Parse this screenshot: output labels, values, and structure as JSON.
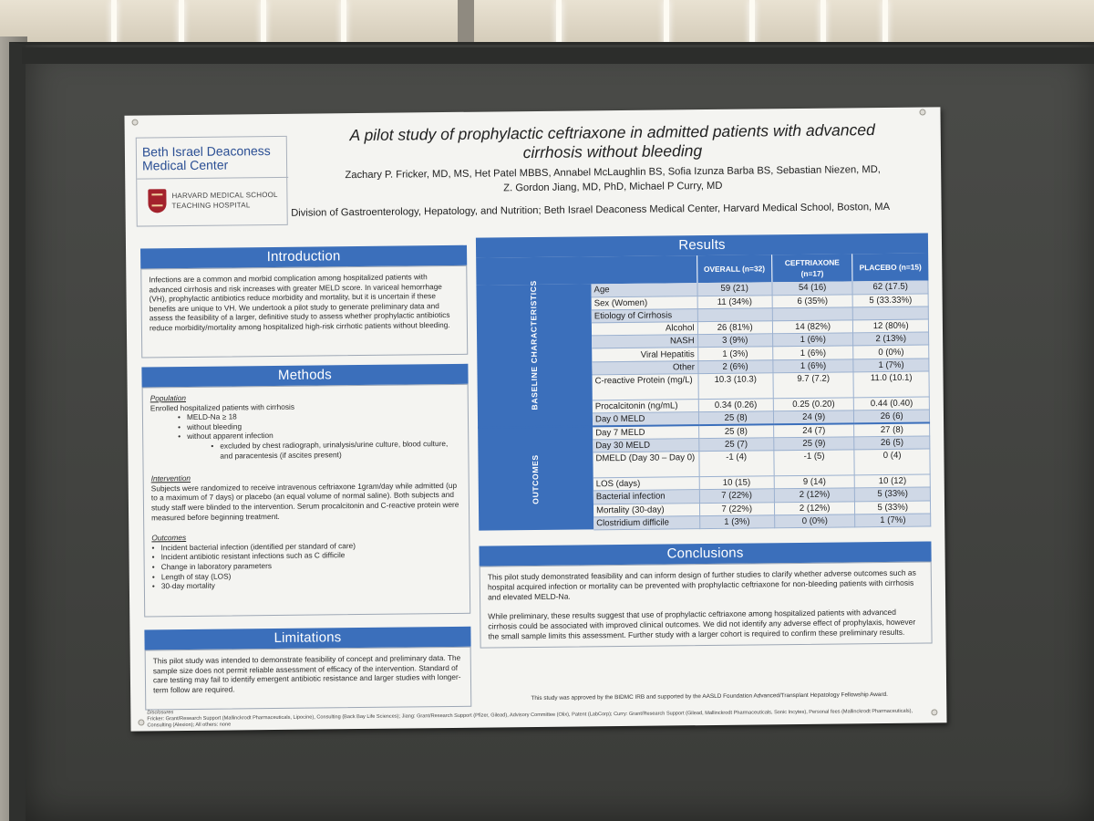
{
  "logo": {
    "line1": "Beth Israel Deaconess",
    "line2": "Medical Center",
    "hms_line1": "HARVARD MEDICAL SCHOOL",
    "hms_line2": "TEACHING HOSPITAL"
  },
  "title_line1": "A pilot study of prophylactic ceftriaxone in admitted patients with advanced",
  "title_line2": "cirrhosis without bleeding",
  "authors_line1": "Zachary P. Fricker, MD, MS, Het Patel MBBS, Annabel McLaughlin BS, Sofia Izunza Barba BS, Sebastian Niezen, MD,",
  "authors_line2": "Z. Gordon Jiang, MD, PhD, Michael P Curry, MD",
  "affiliation": "Division of Gastroenterology, Hepatology, and Nutrition; Beth Israel Deaconess Medical Center, Harvard Medical School, Boston, MA",
  "introduction": {
    "heading": "Introduction",
    "text": "Infections are a common and morbid complication among hospitalized patients with advanced cirrhosis and risk increases with greater MELD score. In variceal hemorrhage (VH), prophylactic antibiotics reduce morbidity and mortality, but it is uncertain if these benefits are unique to VH. We undertook a pilot study to generate preliminary data and assess the feasibility of a larger, definitive study to assess whether prophylactic antibiotics reduce morbidity/mortality among hospitalized high-risk cirrhotic patients without bleeding."
  },
  "methods": {
    "heading": "Methods",
    "population_title": "Population",
    "population_intro": "Enrolled hospitalized patients with cirrhosis",
    "population_bullets": [
      "MELD-Na ≥ 18",
      "without bleeding",
      "without apparent infection"
    ],
    "population_sub": "excluded by chest radiograph, urinalysis/urine culture, blood culture, and paracentesis (if ascites present)",
    "intervention_title": "Intervention",
    "intervention_text": "Subjects were randomized to receive intravenous ceftriaxone 1gram/day while admitted (up to a maximum of 7 days) or placebo (an equal volume of normal saline). Both subjects and study staff were blinded to the intervention. Serum procalcitonin and C-reactive protein were measured before beginning treatment.",
    "outcomes_title": "Outcomes",
    "outcomes_bullets": [
      "Incident bacterial infection (identified per standard of care)",
      "Incident antibiotic resistant infections such as C difficile",
      "Change in laboratory parameters",
      "Length of stay (LOS)",
      "30-day mortality"
    ]
  },
  "limitations": {
    "heading": "Limitations",
    "text": "This pilot study was intended to demonstrate feasibility of concept and preliminary data. The sample size does not permit reliable assessment of efficacy of the intervention. Standard of care testing may fail to identify emergent antibiotic resistance and larger studies with longer-term follow are required."
  },
  "results": {
    "heading": "Results",
    "col_overall": "OVERALL (n=32)",
    "col_ceftriaxone": "CEFTRIAXONE (n=17)",
    "col_placebo": "PLACEBO (n=15)",
    "group_baseline": "BASELINE CHARACTERISTICS",
    "group_outcomes": "OUTCOMES",
    "baseline_rows": [
      {
        "label": "Age",
        "overall": "59 (21)",
        "ceftriaxone": "54 (16)",
        "placebo": "62 (17.5)"
      },
      {
        "label": "Sex (Women)",
        "overall": "11 (34%)",
        "ceftriaxone": "6 (35%)",
        "placebo": "5 (33.33%)"
      },
      {
        "label": "Etiology of Cirrhosis",
        "overall": "",
        "ceftriaxone": "",
        "placebo": ""
      },
      {
        "label": "Alcohol",
        "overall": "26 (81%)",
        "ceftriaxone": "14 (82%)",
        "placebo": "12 (80%)"
      },
      {
        "label": "NASH",
        "overall": "3 (9%)",
        "ceftriaxone": "1 (6%)",
        "placebo": "2 (13%)"
      },
      {
        "label": "Viral Hepatitis",
        "overall": "1 (3%)",
        "ceftriaxone": "1 (6%)",
        "placebo": "0 (0%)"
      },
      {
        "label": "Other",
        "overall": "2 (6%)",
        "ceftriaxone": "1 (6%)",
        "placebo": "1 (7%)"
      },
      {
        "label": "C-reactive Protein (mg/L)",
        "overall": "10.3 (10.3)",
        "ceftriaxone": "9.7 (7.2)",
        "placebo": "11.0 (10.1)"
      },
      {
        "label": "Procalcitonin (ng/mL)",
        "overall": "0.34 (0.26)",
        "ceftriaxone": "0.25 (0.20)",
        "placebo": "0.44 (0.40)"
      },
      {
        "label": "Day 0 MELD",
        "overall": "25 (8)",
        "ceftriaxone": "24 (9)",
        "placebo": "26 (6)"
      }
    ],
    "outcome_rows": [
      {
        "label": "Day 7 MELD",
        "overall": "25 (8)",
        "ceftriaxone": "24 (7)",
        "placebo": "27 (8)"
      },
      {
        "label": "Day 30 MELD",
        "overall": "25 (7)",
        "ceftriaxone": "25 (9)",
        "placebo": "26 (5)"
      },
      {
        "label": "DMELD (Day 30 – Day 0)",
        "overall": "-1 (4)",
        "ceftriaxone": "-1 (5)",
        "placebo": "0 (4)"
      },
      {
        "label": "LOS (days)",
        "overall": "10 (15)",
        "ceftriaxone": "9 (14)",
        "placebo": "10 (12)"
      },
      {
        "label": "Bacterial infection",
        "overall": "7 (22%)",
        "ceftriaxone": "2 (12%)",
        "placebo": "5 (33%)"
      },
      {
        "label": "Mortality (30-day)",
        "overall": "7 (22%)",
        "ceftriaxone": "2 (12%)",
        "placebo": "5 (33%)"
      },
      {
        "label": "Clostridium difficile",
        "overall": "1 (3%)",
        "ceftriaxone": "0 (0%)",
        "placebo": "1 (7%)"
      }
    ]
  },
  "conclusions": {
    "heading": "Conclusions",
    "p1": "This pilot study demonstrated feasibility and can inform design of further studies to clarify whether adverse outcomes such as hospital acquired infection or mortality can be prevented with prophylactic ceftriaxone for non-bleeding patients with cirrhosis and elevated MELD-Na.",
    "p2": "While preliminary, these results suggest that use of prophylactic ceftriaxone among hospitalized patients with advanced cirrhosis could be associated with improved clinical outcomes. We did not identify any adverse effect of prophylaxis, however the small sample limits this assessment. Further study with a larger cohort is required to confirm these preliminary results."
  },
  "footnote": "This study was approved by the BIDMC IRB and supported by the AASLD Foundation Advanced/Transplant Hepatology Fellowship Award.",
  "disclosures": {
    "heading": "Disclosures",
    "text": "Fricker: Grant/Research Support (Mallinckrodt Pharmaceuticals, Lipocine), Consulting (Back Bay Life Sciences); Jiang: Grant/Research Support (Pfizer, Gilead), Advisory Committee (Olix), Patent (LabCorp); Curry: Grant/Research Support (Gilead, Mallinckrodt Pharmaceuticals, Sonic Incytes), Personal fees (Mallinckrodt Pharmaceuticals), Consulting (Alexion); All others: none"
  },
  "colors": {
    "accent": "#3b6fbb",
    "board": "#434441",
    "poster": "#f4f4f1",
    "logo_blue": "#2b4f94",
    "shield_red": "#a3222c"
  }
}
